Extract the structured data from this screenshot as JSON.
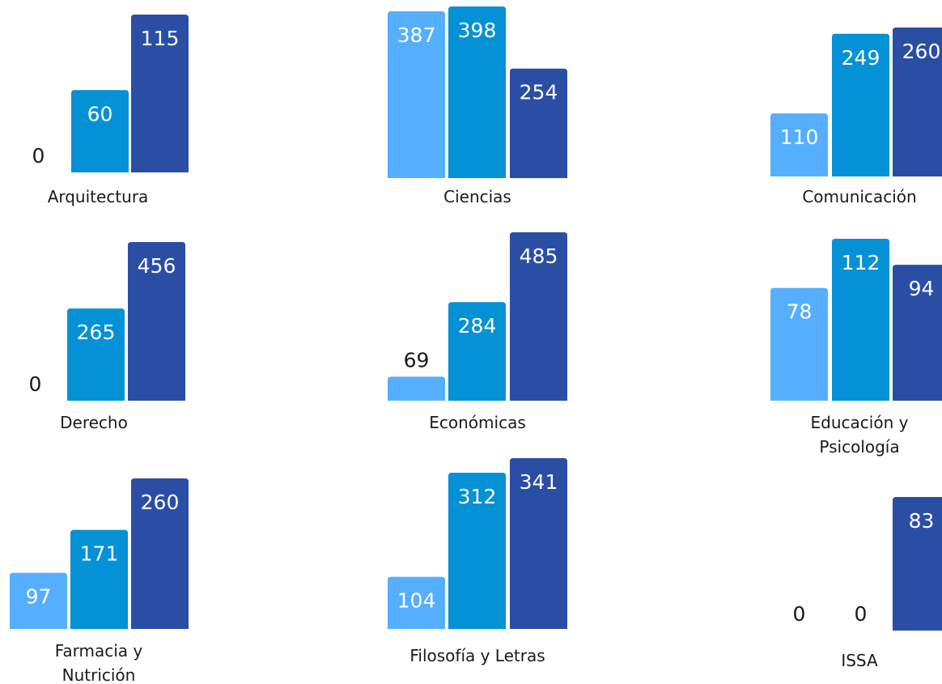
{
  "colors": {
    "series1": "#56aefe",
    "series2": "#0591d6",
    "series3": "#2b4ea5",
    "label_inside": "#ffffff",
    "label_outside": "#1a1a1a",
    "category_label": "#1a1a1a"
  },
  "chart_data": {
    "type": "bar",
    "layout": "small-multiples",
    "grid": false,
    "legend": "none",
    "title": "",
    "panels": [
      {
        "category": "Arquitectura",
        "values": [
          0,
          60,
          115
        ]
      },
      {
        "category": "Ciencias",
        "values": [
          387,
          398,
          254
        ]
      },
      {
        "category": "Comunicación",
        "values": [
          110,
          249,
          260
        ]
      },
      {
        "category": "Derecho",
        "values": [
          0,
          265,
          456
        ]
      },
      {
        "category": "Económicas",
        "values": [
          69,
          284,
          485
        ]
      },
      {
        "category": "Educación y Psicología",
        "values": [
          78,
          112,
          94
        ]
      },
      {
        "category": "Farmacia y Nutrición",
        "values": [
          97,
          171,
          260
        ]
      },
      {
        "category": "Filosofía y Letras",
        "values": [
          104,
          312,
          341
        ]
      },
      {
        "category": "ISSA",
        "values": [
          0,
          0,
          83
        ]
      }
    ]
  }
}
